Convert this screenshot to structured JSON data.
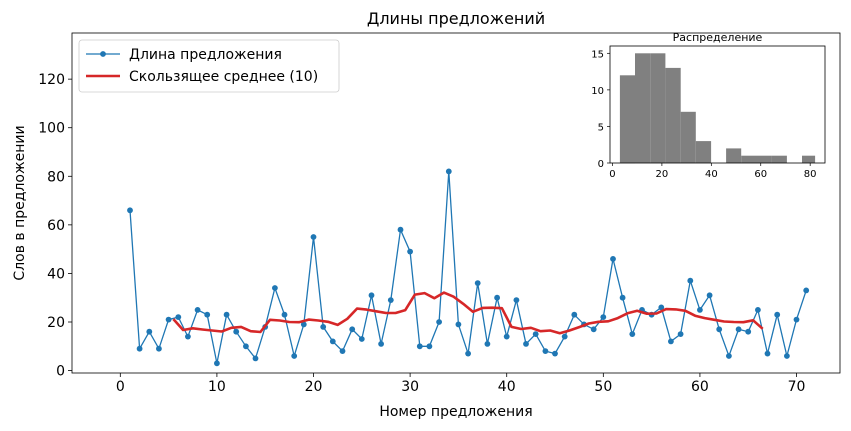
{
  "chart_data": [
    {
      "type": "line",
      "title": "Длины предложений",
      "xlabel": "Номер предложения",
      "ylabel": "Слов в предложении",
      "xlim": [
        -5.0,
        74.5
      ],
      "ylim": [
        -1,
        139
      ],
      "x_ticks": [
        0,
        10,
        20,
        30,
        40,
        50,
        60,
        70
      ],
      "y_ticks": [
        0,
        20,
        40,
        60,
        80,
        100,
        120
      ],
      "grid": false,
      "legend": {
        "position": "top-left",
        "entries": [
          "Длина предложения",
          "Скользящее среднее (10)"
        ]
      },
      "series": [
        {
          "name": "Длина предложения",
          "color": "#1f77b4",
          "marker": "circle",
          "x": [
            1,
            2,
            3,
            4,
            5,
            6,
            7,
            8,
            9,
            10,
            11,
            12,
            13,
            14,
            15,
            16,
            17,
            18,
            19,
            20,
            21,
            22,
            23,
            24,
            25,
            26,
            27,
            28,
            29,
            30,
            31,
            32,
            33,
            34,
            35,
            36,
            37,
            38,
            39,
            40,
            41,
            42,
            43,
            44,
            45,
            46,
            47,
            48,
            49,
            50,
            51,
            52,
            53,
            54,
            55,
            56,
            57,
            58,
            59,
            60,
            61,
            62,
            63,
            64,
            65,
            66,
            67,
            68,
            69,
            70,
            71
          ],
          "y": [
            66,
            9,
            16,
            9,
            21,
            22,
            14,
            25,
            23,
            3,
            23,
            16,
            10,
            5,
            18,
            34,
            23,
            6,
            19,
            55,
            18,
            12,
            8,
            17,
            13,
            31,
            11,
            29,
            58,
            49,
            10,
            10,
            20,
            82,
            19,
            7,
            36,
            11,
            30,
            14,
            29,
            11,
            15,
            8,
            7,
            14,
            23,
            19,
            17,
            22,
            46,
            30,
            15,
            25,
            23,
            26,
            12,
            15,
            37,
            25,
            31,
            17,
            6,
            17,
            16,
            25,
            7,
            23,
            6,
            21,
            33
          ]
        },
        {
          "name": "Скользящее среднее (10)",
          "color": "#d62728",
          "x": [
            5.5,
            6.5,
            7.5,
            8.5,
            9.5,
            10.5,
            11.5,
            12.5,
            13.5,
            14.5,
            15.5,
            16.5,
            17.5,
            18.5,
            19.5,
            20.5,
            21.5,
            22.5,
            23.5,
            24.5,
            25.5,
            26.5,
            27.5,
            28.5,
            29.5,
            30.5,
            31.5,
            32.5,
            33.5,
            34.5,
            35.5,
            36.5,
            37.5,
            38.5,
            39.5,
            40.5,
            41.5,
            42.5,
            43.5,
            44.5,
            45.5,
            46.5,
            47.5,
            48.5,
            49.5,
            50.5,
            51.5,
            52.5,
            53.5,
            54.5,
            55.5,
            56.5,
            57.5,
            58.5,
            59.5,
            60.5,
            61.5,
            62.5,
            63.5,
            64.5,
            65.5,
            66.5
          ],
          "y": [
            21.2,
            16.7,
            17.4,
            16.9,
            16.5,
            16.1,
            17.6,
            18.0,
            16.2,
            15.9,
            20.9,
            20.6,
            20.0,
            19.9,
            21.0,
            20.6,
            20.1,
            18.8,
            21.3,
            25.5,
            25.1,
            24.4,
            23.7,
            23.7,
            24.9,
            31.3,
            31.9,
            29.8,
            32.1,
            30.4,
            27.5,
            24.2,
            25.8,
            25.9,
            25.7,
            18.0,
            17.1,
            17.6,
            16.2,
            16.5,
            15.4,
            16.5,
            17.9,
            19.4,
            20.1,
            20.3,
            21.6,
            23.6,
            24.6,
            23.4,
            23.5,
            25.3,
            25.2,
            24.6,
            22.6,
            21.6,
            20.9,
            20.2,
            20.0,
            19.9,
            20.7,
            17.2
          ]
        }
      ]
    },
    {
      "type": "bar",
      "title": "Распределение",
      "xlim": [
        -1,
        86
      ],
      "ylim": [
        0,
        16
      ],
      "x_ticks": [
        0,
        20,
        40,
        60,
        80
      ],
      "y_ticks": [
        0,
        5,
        10,
        15
      ],
      "color": "#808080",
      "bin_edges": [
        3,
        9.1,
        15.3,
        21.4,
        27.6,
        33.7,
        39.9,
        46,
        52.1,
        58.3,
        64.4,
        70.6,
        76.7,
        82
      ],
      "values": [
        12,
        15,
        15,
        13,
        7,
        3,
        0,
        2,
        1,
        1,
        1,
        0,
        1
      ]
    }
  ]
}
